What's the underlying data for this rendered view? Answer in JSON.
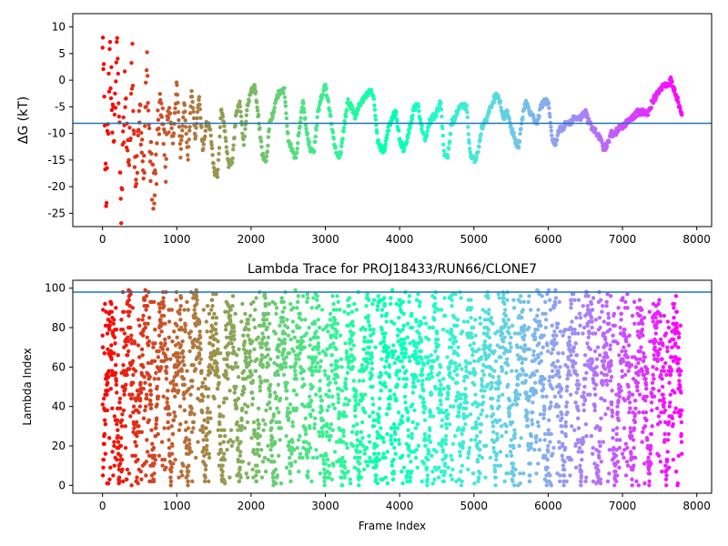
{
  "chart_data": [
    {
      "type": "scatter",
      "title": "",
      "xlabel": "",
      "ylabel": "ΔG (kT)",
      "xlim": [
        -400,
        8200
      ],
      "ylim": [
        -27.5,
        12.5
      ],
      "xticks": [
        0,
        1000,
        2000,
        3000,
        4000,
        5000,
        6000,
        7000,
        8000
      ],
      "yticks": [
        10,
        5,
        0,
        -5,
        -10,
        -15,
        -20,
        -25
      ],
      "hline": -8.1,
      "hline_color": "#1f77b4",
      "colormap": "rainbow (red at frame 0 → violet at last frame)",
      "x_max_frame": 7800,
      "grid": false,
      "trace": [
        [
          0,
          10.5
        ],
        [
          50,
          -22
        ],
        [
          100,
          6
        ],
        [
          150,
          -12
        ],
        [
          200,
          8
        ],
        [
          250,
          -26
        ],
        [
          300,
          -2
        ],
        [
          350,
          -18
        ],
        [
          400,
          3
        ],
        [
          450,
          -22
        ],
        [
          500,
          -3
        ],
        [
          550,
          -20
        ],
        [
          600,
          5
        ],
        [
          650,
          -15
        ],
        [
          700,
          -24
        ],
        [
          750,
          -8
        ],
        [
          800,
          -3
        ],
        [
          850,
          -15
        ],
        [
          900,
          -5
        ],
        [
          950,
          -12
        ],
        [
          1000,
          0
        ],
        [
          1050,
          -14
        ],
        [
          1100,
          -4
        ],
        [
          1150,
          -15
        ],
        [
          1200,
          -2
        ],
        [
          1250,
          -11
        ],
        [
          1300,
          -3
        ],
        [
          1350,
          -13
        ],
        [
          1400,
          -8
        ],
        [
          1450,
          -9
        ],
        [
          1500,
          -17
        ],
        [
          1550,
          -18
        ],
        [
          1600,
          -5
        ],
        [
          1650,
          -10
        ],
        [
          1700,
          -16
        ],
        [
          1750,
          -15
        ],
        [
          1800,
          -6
        ],
        [
          1850,
          -4
        ],
        [
          1900,
          -12
        ],
        [
          1950,
          -5
        ],
        [
          2000,
          -2
        ],
        [
          2050,
          -1
        ],
        [
          2100,
          -7
        ],
        [
          2150,
          -14
        ],
        [
          2200,
          -16
        ],
        [
          2250,
          -8
        ],
        [
          2300,
          -6
        ],
        [
          2350,
          -3
        ],
        [
          2400,
          -2
        ],
        [
          2450,
          -2
        ],
        [
          2500,
          -11
        ],
        [
          2550,
          -13
        ],
        [
          2600,
          -15
        ],
        [
          2650,
          -9
        ],
        [
          2700,
          -4
        ],
        [
          2750,
          -10
        ],
        [
          2800,
          -13
        ],
        [
          2850,
          -13
        ],
        [
          2900,
          -6
        ],
        [
          2950,
          -3
        ],
        [
          3000,
          -1
        ],
        [
          3050,
          -5
        ],
        [
          3100,
          -10
        ],
        [
          3150,
          -14
        ],
        [
          3200,
          -14
        ],
        [
          3250,
          -9
        ],
        [
          3300,
          -4
        ],
        [
          3350,
          -5
        ],
        [
          3400,
          -7
        ],
        [
          3450,
          -5
        ],
        [
          3500,
          -4
        ],
        [
          3550,
          -3
        ],
        [
          3600,
          -2
        ],
        [
          3650,
          -3
        ],
        [
          3700,
          -11
        ],
        [
          3750,
          -13
        ],
        [
          3800,
          -13
        ],
        [
          3850,
          -9
        ],
        [
          3900,
          -7
        ],
        [
          3950,
          -6
        ],
        [
          4000,
          -11
        ],
        [
          4050,
          -13
        ],
        [
          4100,
          -11
        ],
        [
          4150,
          -8
        ],
        [
          4200,
          -5
        ],
        [
          4250,
          -5
        ],
        [
          4300,
          -9
        ],
        [
          4350,
          -11
        ],
        [
          4400,
          -8
        ],
        [
          4450,
          -7
        ],
        [
          4500,
          -6
        ],
        [
          4550,
          -4
        ],
        [
          4600,
          -14
        ],
        [
          4650,
          -14
        ],
        [
          4700,
          -8
        ],
        [
          4750,
          -7
        ],
        [
          4800,
          -5
        ],
        [
          4850,
          -5
        ],
        [
          4900,
          -5
        ],
        [
          4950,
          -14
        ],
        [
          5000,
          -15
        ],
        [
          5050,
          -14
        ],
        [
          5100,
          -9
        ],
        [
          5150,
          -8
        ],
        [
          5200,
          -6
        ],
        [
          5250,
          -4
        ],
        [
          5300,
          -3
        ],
        [
          5350,
          -4
        ],
        [
          5400,
          -7
        ],
        [
          5450,
          -6
        ],
        [
          5500,
          -9
        ],
        [
          5550,
          -11
        ],
        [
          5600,
          -13
        ],
        [
          5650,
          -7
        ],
        [
          5700,
          -4
        ],
        [
          5750,
          -6
        ],
        [
          5800,
          -7
        ],
        [
          5850,
          -8
        ],
        [
          5900,
          -5
        ],
        [
          5950,
          -4
        ],
        [
          6000,
          -4
        ],
        [
          6050,
          -11
        ],
        [
          6100,
          -12
        ],
        [
          6150,
          -9
        ],
        [
          6200,
          -9
        ],
        [
          6250,
          -8
        ],
        [
          6300,
          -8
        ],
        [
          6350,
          -7
        ],
        [
          6400,
          -7
        ],
        [
          6450,
          -7
        ],
        [
          6500,
          -6
        ],
        [
          6550,
          -8
        ],
        [
          6600,
          -9
        ],
        [
          6650,
          -10
        ],
        [
          6700,
          -11
        ],
        [
          6750,
          -13
        ],
        [
          6800,
          -12
        ],
        [
          6850,
          -10
        ],
        [
          6900,
          -10
        ],
        [
          6950,
          -9
        ],
        [
          7000,
          -9
        ],
        [
          7050,
          -8
        ],
        [
          7100,
          -7
        ],
        [
          7150,
          -7
        ],
        [
          7200,
          -6
        ],
        [
          7250,
          -6
        ],
        [
          7300,
          -6
        ],
        [
          7350,
          -6
        ],
        [
          7400,
          -4
        ],
        [
          7450,
          -3
        ],
        [
          7500,
          -2
        ],
        [
          7550,
          -1
        ],
        [
          7600,
          -1
        ],
        [
          7650,
          0
        ],
        [
          7700,
          -2
        ],
        [
          7750,
          -4
        ],
        [
          7800,
          -7
        ]
      ]
    },
    {
      "type": "scatter",
      "title": "Lambda Trace for PROJ18433/RUN66/CLONE7",
      "xlabel": "Frame Index",
      "ylabel": "Lambda Index",
      "xlim": [
        -400,
        8200
      ],
      "ylim": [
        -4,
        104
      ],
      "xticks": [
        0,
        1000,
        2000,
        3000,
        4000,
        5000,
        6000,
        7000,
        8000
      ],
      "yticks": [
        0,
        20,
        40,
        60,
        80,
        100
      ],
      "hline": 98,
      "hline_color": "#1f77b4",
      "colormap": "rainbow (red at frame 0 → violet at last frame)",
      "x_max_frame": 7800,
      "lambda_range": [
        0,
        99
      ],
      "grid": false
    }
  ]
}
